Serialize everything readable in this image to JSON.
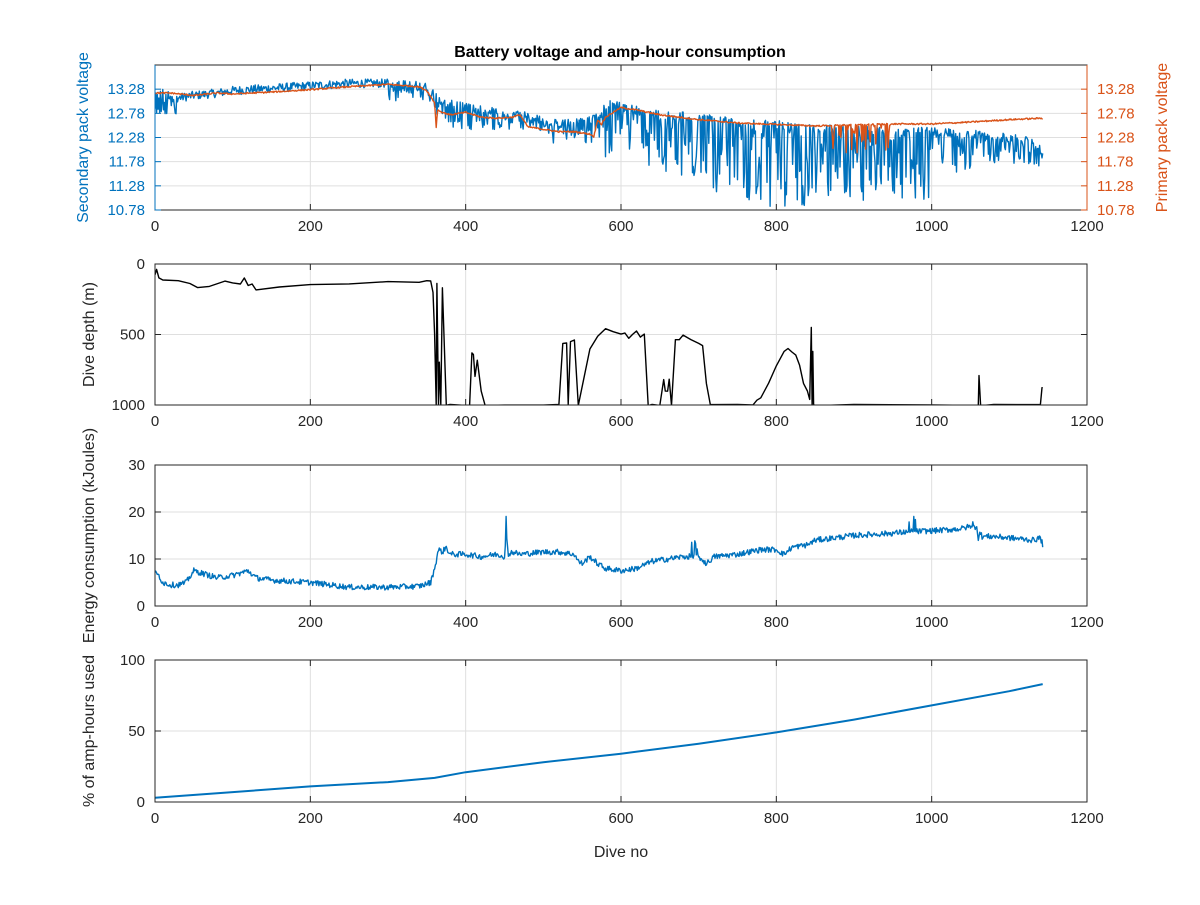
{
  "figure_title": "Battery voltage and amp-hour consumption",
  "colors": {
    "blue": "#0072BD",
    "orange": "#D95319",
    "axis": "#262626",
    "grid": "#dfdfdf",
    "black": "#000000"
  },
  "chart_data": [
    {
      "id": "voltage",
      "type": "line",
      "title": "Battery voltage and amp-hour consumption",
      "xlabel": "",
      "ylabel": "Secondary pack voltage",
      "ylabel_right": "Primary pack voltage",
      "xlim": [
        0,
        1200
      ],
      "ylim": [
        10.78,
        13.78
      ],
      "xticks": [
        0,
        200,
        400,
        600,
        800,
        1000,
        1200
      ],
      "yticks": [
        "10.78",
        "11.28",
        "11.78",
        "12.28",
        "12.78",
        "13.28"
      ],
      "yticks_right": [
        "10.78",
        "11.28",
        "11.78",
        "12.28",
        "12.78",
        "13.28"
      ],
      "grid": true,
      "series": [
        {
          "axis": "left",
          "color": "#0072BD",
          "noisy": true,
          "x": [
            0,
            10,
            30,
            50,
            80,
            100,
            150,
            200,
            250,
            300,
            340,
            355,
            362,
            370,
            400,
            440,
            480,
            500,
            520,
            550,
            570,
            580,
            590,
            600,
            620,
            650,
            700,
            750,
            800,
            850,
            900,
            950,
            1000,
            1050,
            1100,
            1130,
            1143
          ],
          "y": [
            13.1,
            13.2,
            13.1,
            13.15,
            13.2,
            13.25,
            13.3,
            13.35,
            13.4,
            13.4,
            13.35,
            13.3,
            13.1,
            13.0,
            12.9,
            12.8,
            12.75,
            12.6,
            12.55,
            12.6,
            12.7,
            12.9,
            13.0,
            12.9,
            12.85,
            12.75,
            12.7,
            12.6,
            12.55,
            12.45,
            12.45,
            12.4,
            12.4,
            12.35,
            12.3,
            12.2,
            12.0
          ],
          "downspikes": [
            [
              0,
              30,
              0.4
            ],
            [
              300,
              360,
              0.3
            ],
            [
              360,
              440,
              0.45
            ],
            [
              440,
              520,
              0.35
            ],
            [
              520,
              580,
              0.45
            ],
            [
              580,
              620,
              1.1
            ],
            [
              620,
              700,
              1.2
            ],
            [
              700,
              760,
              1.5
            ],
            [
              760,
              860,
              1.7
            ],
            [
              860,
              1000,
              1.4
            ],
            [
              1000,
              1060,
              0.8
            ],
            [
              1060,
              1143,
              0.5
            ]
          ]
        },
        {
          "axis": "right",
          "color": "#D95319",
          "noisy": false,
          "x": [
            0,
            20,
            50,
            80,
            100,
            150,
            200,
            250,
            300,
            340,
            350,
            360,
            362,
            364,
            370,
            380,
            400,
            420,
            440,
            460,
            470,
            480,
            500,
            520,
            540,
            560,
            565,
            570,
            575,
            580,
            600,
            620,
            650,
            700,
            750,
            800,
            850,
            900,
            950,
            1000,
            1050,
            1100,
            1143
          ],
          "y": [
            13.2,
            13.2,
            13.15,
            13.2,
            13.18,
            13.22,
            13.27,
            13.33,
            13.38,
            13.33,
            13.25,
            13.0,
            12.5,
            12.85,
            12.8,
            12.75,
            12.8,
            12.7,
            12.68,
            12.7,
            12.75,
            12.5,
            12.45,
            12.4,
            12.4,
            12.35,
            12.3,
            12.65,
            12.55,
            12.7,
            12.9,
            12.85,
            12.75,
            12.65,
            12.58,
            12.55,
            12.52,
            12.54,
            12.56,
            12.56,
            12.6,
            12.65,
            12.68
          ],
          "downspikes": [
            [
              870,
              950,
              0.6
            ]
          ]
        }
      ]
    },
    {
      "id": "depth",
      "type": "line",
      "title": "",
      "xlabel": "",
      "ylabel": "Dive depth (m)",
      "xlim": [
        0,
        1200
      ],
      "ylim": [
        0,
        1000
      ],
      "y_reversed": true,
      "xticks": [
        0,
        200,
        400,
        600,
        800,
        1000,
        1200
      ],
      "yticks": [
        "0",
        "500",
        "1000"
      ],
      "grid": true,
      "series": [
        {
          "color": "#000000",
          "x": [
            0,
            2,
            5,
            10,
            30,
            45,
            55,
            70,
            90,
            100,
            110,
            115,
            120,
            125,
            130,
            160,
            200,
            250,
            300,
            340,
            350,
            355,
            358,
            360,
            362,
            363,
            365,
            366,
            368,
            370,
            375,
            380,
            400,
            405,
            408,
            410,
            412,
            415,
            420,
            425,
            450,
            500,
            520,
            525,
            530,
            532,
            535,
            540,
            545,
            560,
            570,
            580,
            590,
            600,
            605,
            610,
            615,
            620,
            625,
            630,
            635,
            640,
            650,
            655,
            657,
            660,
            662,
            665,
            670,
            675,
            680,
            690,
            700,
            705,
            710,
            715,
            720,
            750,
            770,
            775,
            780,
            790,
            800,
            810,
            815,
            820,
            825,
            830,
            835,
            840,
            843,
            845,
            846,
            847,
            848,
            850,
            900,
            1000,
            1055,
            1060,
            1061,
            1063,
            1065,
            1080,
            1140,
            1142,
            1143
          ],
          "y": [
            80,
            40,
            100,
            110,
            120,
            140,
            170,
            160,
            120,
            130,
            140,
            100,
            150,
            140,
            180,
            165,
            150,
            140,
            130,
            125,
            120,
            125,
            200,
            500,
            1000,
            140,
            1000,
            700,
            1000,
            170,
            1000,
            1000,
            1000,
            1000,
            630,
            640,
            800,
            680,
            900,
            1000,
            1000,
            1000,
            1000,
            560,
            560,
            1000,
            550,
            540,
            1000,
            600,
            510,
            460,
            480,
            500,
            490,
            530,
            500,
            480,
            520,
            500,
            1000,
            1000,
            1000,
            820,
            900,
            900,
            820,
            1000,
            540,
            540,
            500,
            540,
            560,
            580,
            850,
            1000,
            1000,
            1000,
            1000,
            970,
            950,
            850,
            720,
            620,
            600,
            620,
            650,
            720,
            850,
            900,
            960,
            450,
            1000,
            620,
            1000,
            1000,
            1000,
            1000,
            1000,
            1000,
            790,
            1000,
            1000,
            1000,
            1000,
            880,
            880
          ]
        }
      ]
    },
    {
      "id": "energy",
      "type": "line",
      "title": "",
      "xlabel": "",
      "ylabel": "Energy consumption (kJoules)",
      "xlim": [
        0,
        1200
      ],
      "ylim": [
        0,
        30
      ],
      "xticks": [
        0,
        200,
        400,
        600,
        800,
        1000,
        1200
      ],
      "yticks": [
        "0",
        "10",
        "20",
        "30"
      ],
      "grid": true,
      "series": [
        {
          "color": "#0072BD",
          "noisy": true,
          "noise_amp": 0.6,
          "x": [
            0,
            5,
            10,
            20,
            30,
            40,
            50,
            60,
            80,
            100,
            110,
            120,
            130,
            150,
            200,
            250,
            300,
            340,
            355,
            360,
            365,
            370,
            375,
            380,
            400,
            420,
            440,
            450,
            452,
            455,
            460,
            470,
            500,
            520,
            540,
            545,
            550,
            560,
            570,
            580,
            600,
            620,
            640,
            660,
            680,
            700,
            710,
            720,
            750,
            780,
            800,
            810,
            820,
            840,
            850,
            900,
            950,
            970,
            1000,
            1020,
            1040,
            1050,
            1055,
            1058,
            1060,
            1062,
            1065,
            1080,
            1100,
            1120,
            1130,
            1140,
            1143
          ],
          "y": [
            7.0,
            6.5,
            5.0,
            4.5,
            4.5,
            5.0,
            7.5,
            7.0,
            6.0,
            6.5,
            7.0,
            7.5,
            6.0,
            5.5,
            5.0,
            4.0,
            4.0,
            4.2,
            5.0,
            8.0,
            12.0,
            11.5,
            12.5,
            11.0,
            11.0,
            10.5,
            11.0,
            10.5,
            15.5,
            11.0,
            11.5,
            11.0,
            11.5,
            11.5,
            11.0,
            9.5,
            9.0,
            10.5,
            9.0,
            8.0,
            7.5,
            8.0,
            9.5,
            10.0,
            10.5,
            10.5,
            9.0,
            10.5,
            11.0,
            12.0,
            12.0,
            11.0,
            12.5,
            13.0,
            14.0,
            15.0,
            15.5,
            15.8,
            16.0,
            16.2,
            16.5,
            17.0,
            16.8,
            17.0,
            14.5,
            15.5,
            14.8,
            14.8,
            14.5,
            14.2,
            14.0,
            14.5,
            13.0
          ],
          "upspikes": [
            [
              452,
              456,
              5.0
            ],
            [
              690,
              700,
              3.0
            ],
            [
              970,
              980,
              3.5
            ],
            [
              1050,
              1056,
              1.5
            ]
          ]
        }
      ]
    },
    {
      "id": "amphours",
      "type": "line",
      "title": "",
      "xlabel": "Dive no",
      "ylabel": "% of amp-hours used",
      "xlim": [
        0,
        1200
      ],
      "ylim": [
        0,
        100
      ],
      "xticks": [
        0,
        200,
        400,
        600,
        800,
        1000,
        1200
      ],
      "yticks": [
        "0",
        "50",
        "100"
      ],
      "grid": true,
      "series": [
        {
          "color": "#0072BD",
          "x": [
            0,
            100,
            200,
            300,
            360,
            400,
            500,
            600,
            700,
            800,
            900,
            1000,
            1100,
            1143
          ],
          "y": [
            3,
            7,
            11,
            14,
            17,
            21,
            28,
            34,
            41,
            49,
            58,
            68,
            78,
            83
          ]
        }
      ]
    }
  ]
}
